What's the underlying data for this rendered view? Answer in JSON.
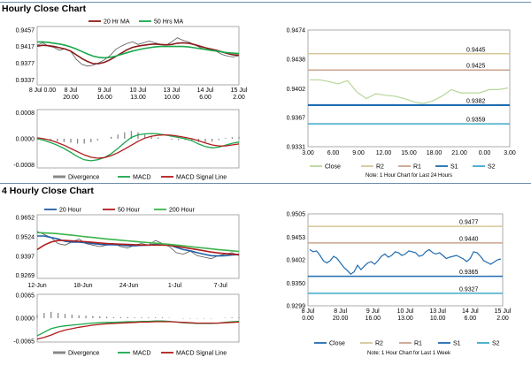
{
  "sections": {
    "hourly_title": "Hourly Close Chart",
    "four_hourly_title": "4 Hourly Close Chart"
  },
  "colors": {
    "price": "#555555",
    "ma_short": "#8b1a1a",
    "ma_long": "#18a84a",
    "ma_mid": "#b01c1c",
    "ma_200": "#3cb44b",
    "ma_20": "#1f5fa8",
    "r2": "#d4c79a",
    "r1": "#c9a48f",
    "s1": "#1f6bb0",
    "s2": "#3fa9c8",
    "close_h": "#b7d79a",
    "close_4h": "#1f6bb0",
    "divergence": "#888888",
    "macd": "#18a84a",
    "signal": "#b01c1c",
    "frame": "#888888"
  },
  "chart_data": [
    {
      "id": "hourly-price",
      "type": "line",
      "legend": [
        "20 Hr MA",
        "50 Hrs MA"
      ],
      "y_ticks": [
        "0.9457",
        "0.9417",
        "0.9377",
        "0.9337"
      ],
      "ylim": [
        0.9325,
        0.9465
      ],
      "x_ticks": [
        [
          "8 Jul 0.00",
          ""
        ],
        [
          "8 Jul",
          "20.00"
        ],
        [
          "9 Jul",
          "16.00"
        ],
        [
          "10 Jul",
          "13.00"
        ],
        [
          "13 Jul",
          "10.00"
        ],
        [
          "14 Jul",
          "6.00"
        ],
        [
          "15 Jul",
          "2.00"
        ]
      ],
      "series": [
        {
          "name": "Price",
          "values": [
            0.942,
            0.9426,
            0.9418,
            0.9415,
            0.9408,
            0.9412,
            0.9405,
            0.9386,
            0.9374,
            0.937,
            0.9372,
            0.9378,
            0.9385,
            0.9395,
            0.941,
            0.9418,
            0.9424,
            0.9428,
            0.9422,
            0.9426,
            0.943,
            0.9426,
            0.9422,
            0.942,
            0.9428,
            0.9438,
            0.9432,
            0.9428,
            0.9422,
            0.9415,
            0.941,
            0.9412,
            0.9405,
            0.9398,
            0.9394,
            0.9392,
            0.9395
          ]
        },
        {
          "name": "20 Hr MA",
          "values": [
            0.9418,
            0.942,
            0.9419,
            0.9417,
            0.9414,
            0.9411,
            0.9406,
            0.9397,
            0.9388,
            0.9381,
            0.9376,
            0.9376,
            0.9379,
            0.9385,
            0.9393,
            0.9401,
            0.9409,
            0.9415,
            0.9418,
            0.942,
            0.9422,
            0.9423,
            0.9422,
            0.9421,
            0.9422,
            0.9425,
            0.9426,
            0.9425,
            0.9422,
            0.9418,
            0.9414,
            0.9411,
            0.9408,
            0.9404,
            0.94,
            0.9397,
            0.9396
          ]
        },
        {
          "name": "50 Hrs MA",
          "values": [
            0.9428,
            0.9428,
            0.9427,
            0.9425,
            0.9423,
            0.942,
            0.9416,
            0.9411,
            0.9405,
            0.9399,
            0.9394,
            0.9391,
            0.939,
            0.9391,
            0.9394,
            0.9398,
            0.9402,
            0.9406,
            0.9409,
            0.9412,
            0.9414,
            0.9416,
            0.9417,
            0.9417,
            0.9417,
            0.9417,
            0.9417,
            0.9416,
            0.9414,
            0.9412,
            0.941,
            0.9408,
            0.9406,
            0.9404,
            0.9402,
            0.9401,
            0.94
          ]
        }
      ]
    },
    {
      "id": "hourly-macd",
      "type": "line",
      "legend": [
        "Divergence",
        "MACD",
        "MACD Signal Line"
      ],
      "y_ticks": [
        "0.0008",
        "0.0000",
        "-0.0008"
      ],
      "ylim": [
        -0.0009,
        0.0009
      ],
      "series": [
        {
          "name": "MACD",
          "values": [
            0.0,
            -5e-05,
            -0.00012,
            -0.0002,
            -0.0003,
            -0.00042,
            -0.00055,
            -0.00065,
            -0.00068,
            -0.00065,
            -0.00058,
            -0.00046,
            -0.0003,
            -0.00012,
            4e-05,
            0.00012,
            0.00015,
            0.00016,
            0.00015,
            0.00012,
            8e-05,
            4e-05,
            0.0,
            -6e-05,
            -0.00016,
            -0.00024,
            -0.00028,
            -0.00026,
            -0.0002,
            -0.00014,
            -0.0001
          ]
        },
        {
          "name": "MACD Signal Line",
          "values": [
            3e-05,
            0.0,
            -5e-05,
            -0.00012,
            -0.0002,
            -0.0003,
            -0.0004,
            -0.0005,
            -0.00057,
            -0.0006,
            -0.00058,
            -0.00052,
            -0.00043,
            -0.00032,
            -0.0002,
            -8e-05,
            2e-05,
            8e-05,
            0.00011,
            0.00012,
            0.00011,
            8e-05,
            4e-05,
            0.0,
            -6e-05,
            -0.00013,
            -0.00019,
            -0.00022,
            -0.00022,
            -0.00019,
            -0.00016
          ]
        },
        {
          "name": "Divergence",
          "values": [
            -3e-05,
            -5e-05,
            -7e-05,
            -8e-05,
            -0.0001,
            -0.00012,
            -0.00015,
            -0.00015,
            -0.00011,
            -5e-05,
            0.0,
            6e-05,
            0.00013,
            0.0002,
            0.00024,
            0.0002,
            0.00013,
            8e-05,
            4e-05,
            0.0,
            -3e-05,
            -4e-05,
            -4e-05,
            -6e-05,
            -0.0001,
            -0.00011,
            -9e-05,
            -4e-05,
            2e-05,
            5e-05,
            6e-05
          ]
        }
      ]
    },
    {
      "id": "hourly-levels",
      "type": "line",
      "y_ticks": [
        "0.9474",
        "0.9438",
        "0.9402",
        "0.9367",
        "0.9331"
      ],
      "ylim": [
        0.9331,
        0.9474
      ],
      "x_ticks": [
        "3.00",
        "6.00",
        "9.00",
        "12.00",
        "15.00",
        "18.00",
        "21.00",
        "0.00",
        "3.00"
      ],
      "levels": [
        {
          "name": "R2",
          "value": 0.9445,
          "label": "0.9445"
        },
        {
          "name": "R1",
          "value": 0.9425,
          "label": "0.9425"
        },
        {
          "name": "S1",
          "value": 0.9382,
          "label": "0.9382"
        },
        {
          "name": "S2",
          "value": 0.9359,
          "label": "0.9359"
        }
      ],
      "close": [
        0.9413,
        0.9413,
        0.9411,
        0.9408,
        0.9412,
        0.9398,
        0.939,
        0.9396,
        0.9394,
        0.9393,
        0.939,
        0.9386,
        0.9384,
        0.9387,
        0.9393,
        0.9401,
        0.9397,
        0.9397,
        0.9397,
        0.9401,
        0.9401,
        0.9403
      ],
      "legend": [
        "Close",
        "R2",
        "R1",
        "S1",
        "S2"
      ],
      "note": "Note: 1 Hour Chart for Last 24 Hours"
    },
    {
      "id": "4h-price",
      "type": "line",
      "legend": [
        "20 Hour",
        "50 Hour",
        "200 Hour"
      ],
      "y_ticks": [
        "0.9652",
        "0.9524",
        "0.9397",
        "0.9269"
      ],
      "ylim": [
        0.925,
        0.967
      ],
      "x_ticks": [
        "12-Jun",
        "18-Jun",
        "24-Jun",
        "1-Jul",
        "7-Jul"
      ],
      "series": [
        {
          "name": "Price",
          "values": [
            0.956,
            0.954,
            0.952,
            0.948,
            0.947,
            0.949,
            0.951,
            0.948,
            0.947,
            0.946,
            0.947,
            0.948,
            0.946,
            0.945,
            0.947,
            0.948,
            0.947,
            0.95,
            0.948,
            0.946,
            0.942,
            0.941,
            0.943,
            0.94,
            0.939,
            0.938,
            0.94,
            0.941,
            0.942,
            0.94
          ]
        },
        {
          "name": "20 Hour",
          "values": [
            0.953,
            0.953,
            0.952,
            0.951,
            0.9495,
            0.949,
            0.949,
            0.9485,
            0.948,
            0.9475,
            0.9472,
            0.9472,
            0.947,
            0.9465,
            0.9465,
            0.9468,
            0.947,
            0.9475,
            0.9475,
            0.947,
            0.9455,
            0.944,
            0.9432,
            0.942,
            0.941,
            0.94,
            0.9398,
            0.94,
            0.9405,
            0.9408
          ]
        },
        {
          "name": "50 Hour",
          "values": [
            0.944,
            0.947,
            0.949,
            0.95,
            0.95,
            0.9498,
            0.9495,
            0.9492,
            0.9488,
            0.9484,
            0.948,
            0.9478,
            0.9476,
            0.9474,
            0.9472,
            0.947,
            0.947,
            0.947,
            0.947,
            0.9468,
            0.9462,
            0.9455,
            0.9447,
            0.944,
            0.9432,
            0.9424,
            0.9418,
            0.9414,
            0.941,
            0.9408
          ]
        },
        {
          "name": "200 Hour",
          "values": [
            0.9552,
            0.955,
            0.9548,
            0.9545,
            0.954,
            0.9535,
            0.953,
            0.9525,
            0.952,
            0.9515,
            0.951,
            0.9506,
            0.9502,
            0.9498,
            0.9494,
            0.949,
            0.9486,
            0.9482,
            0.9478,
            0.9475,
            0.947,
            0.9465,
            0.946,
            0.9455,
            0.945,
            0.9445,
            0.944,
            0.9436,
            0.9432,
            0.9428
          ]
        }
      ]
    },
    {
      "id": "4h-macd",
      "type": "line",
      "legend": [
        "Divergence",
        "MACD",
        "MACD Signal Line"
      ],
      "y_ticks": [
        "0.0065",
        "0.0000",
        "-0.0065"
      ],
      "ylim": [
        -0.0068,
        0.0068
      ],
      "series": [
        {
          "name": "MACD",
          "values": [
            -0.005,
            -0.004,
            -0.003,
            -0.0025,
            -0.0022,
            -0.002,
            -0.0018,
            -0.0016,
            -0.0014,
            -0.0013,
            -0.0012,
            -0.0012,
            -0.0011,
            -0.001,
            -0.001,
            -0.0009,
            -0.0009,
            -0.0008,
            -0.0008,
            -0.0009,
            -0.0011,
            -0.0013,
            -0.0014,
            -0.0015,
            -0.0015,
            -0.0015,
            -0.0014,
            -0.0012,
            -0.001,
            -0.0009
          ]
        },
        {
          "name": "MACD Signal Line",
          "values": [
            -0.006,
            -0.0055,
            -0.0048,
            -0.004,
            -0.0034,
            -0.003,
            -0.0026,
            -0.0023,
            -0.002,
            -0.0018,
            -0.0016,
            -0.0015,
            -0.0014,
            -0.0013,
            -0.0012,
            -0.0011,
            -0.0011,
            -0.001,
            -0.001,
            -0.001,
            -0.0011,
            -0.0012,
            -0.0013,
            -0.0014,
            -0.0014,
            -0.0014,
            -0.0014,
            -0.0013,
            -0.0012,
            -0.0011
          ]
        },
        {
          "name": "Divergence",
          "values": [
            0.001,
            0.0015,
            0.0018,
            0.0015,
            0.0012,
            0.001,
            0.0008,
            0.0007,
            0.0006,
            0.0005,
            0.0004,
            0.0003,
            0.0003,
            0.0003,
            0.0002,
            0.0002,
            0.0002,
            0.0002,
            0.0002,
            0.0001,
            0.0,
            -0.0001,
            -0.0001,
            -0.0001,
            -0.0001,
            -0.0001,
            0.0,
            0.0001,
            0.0002,
            0.0002
          ]
        }
      ]
    },
    {
      "id": "4h-levels",
      "type": "line",
      "y_ticks": [
        "0.9505",
        "0.9453",
        "0.9402",
        "0.9350",
        "0.9299"
      ],
      "ylim": [
        0.9299,
        0.9505
      ],
      "x_ticks": [
        [
          "8 Jul",
          "0.00"
        ],
        [
          "8 Jul",
          "20.00"
        ],
        [
          "9 Jul",
          "16.00"
        ],
        [
          "10 Jul",
          "13.00"
        ],
        [
          "13 Jul",
          "10.00"
        ],
        [
          "14 Jul",
          "6.00"
        ],
        [
          "15 Jul",
          "2.00"
        ]
      ],
      "levels": [
        {
          "name": "R2",
          "value": 0.9477,
          "label": "0.9477"
        },
        {
          "name": "R1",
          "value": 0.944,
          "label": "0.9440"
        },
        {
          "name": "S1",
          "value": 0.9365,
          "label": "0.9365"
        },
        {
          "name": "S2",
          "value": 0.9327,
          "label": "0.9327"
        }
      ],
      "close": [
        0.9425,
        0.942,
        0.9422,
        0.9412,
        0.94,
        0.9395,
        0.94,
        0.941,
        0.9405,
        0.9395,
        0.9385,
        0.9378,
        0.937,
        0.9375,
        0.939,
        0.938,
        0.9388,
        0.9395,
        0.9398,
        0.9392,
        0.94,
        0.941,
        0.9415,
        0.9408,
        0.9412,
        0.942,
        0.9418,
        0.9412,
        0.9415,
        0.9422,
        0.942,
        0.9418,
        0.941,
        0.9412,
        0.942,
        0.9425,
        0.9418,
        0.9415,
        0.9418,
        0.9412,
        0.9405,
        0.9408,
        0.941,
        0.9412,
        0.9408,
        0.9404,
        0.9398,
        0.9405,
        0.942,
        0.9418,
        0.941,
        0.94,
        0.9396,
        0.9392,
        0.9397,
        0.9402,
        0.9404
      ],
      "legend": [
        "Close",
        "R2",
        "R1",
        "S1",
        "S2"
      ],
      "note": "Note: 1 Hour Chart for Last 1 Week"
    }
  ]
}
